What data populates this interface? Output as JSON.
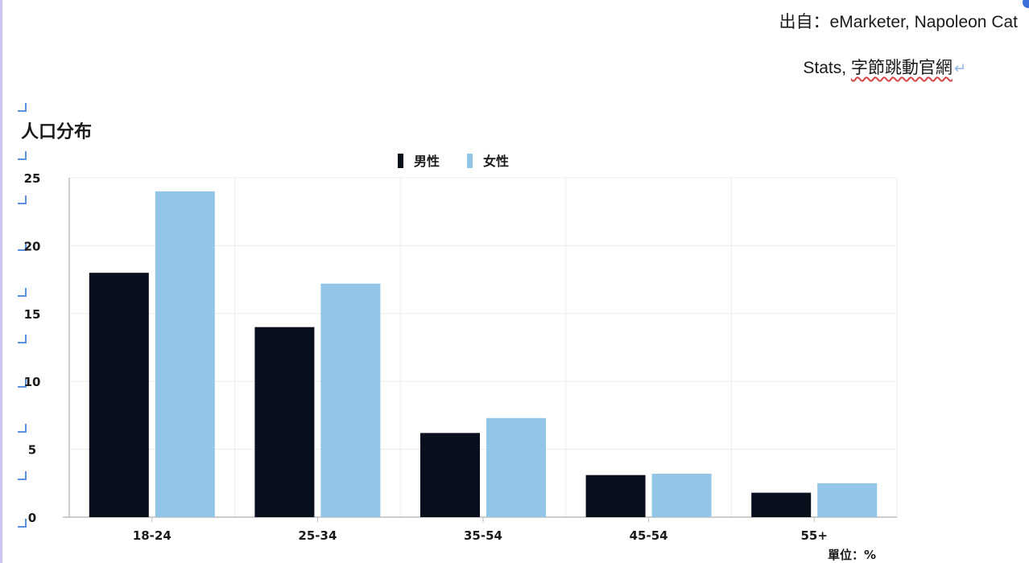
{
  "source": {
    "line1": "出自：eMarketer, Napoleon Cat",
    "line2_prefix": "Stats,",
    "line2_underlined": "字節跳動官網",
    "return_mark": "↵"
  },
  "unit_label": "單位：%",
  "colors": {
    "male": "#0a0f1e",
    "female": "#92c5e6",
    "grid": "#ececec",
    "axis": "#bdbdbd"
  },
  "chart_data": {
    "type": "bar",
    "title": "人口分布",
    "categories": [
      "18-24",
      "25-34",
      "35-54",
      "45-54",
      "55+"
    ],
    "series": [
      {
        "name": "男性",
        "values": [
          18,
          14,
          6.2,
          3.1,
          1.8
        ]
      },
      {
        "name": "女性",
        "values": [
          24,
          17.2,
          7.3,
          3.2,
          2.5
        ]
      }
    ],
    "ylim": [
      0,
      25
    ],
    "yticks": [
      0,
      5,
      10,
      15,
      20,
      25
    ],
    "xlabel": "",
    "ylabel": "",
    "legend": "top-center",
    "grid": true
  }
}
